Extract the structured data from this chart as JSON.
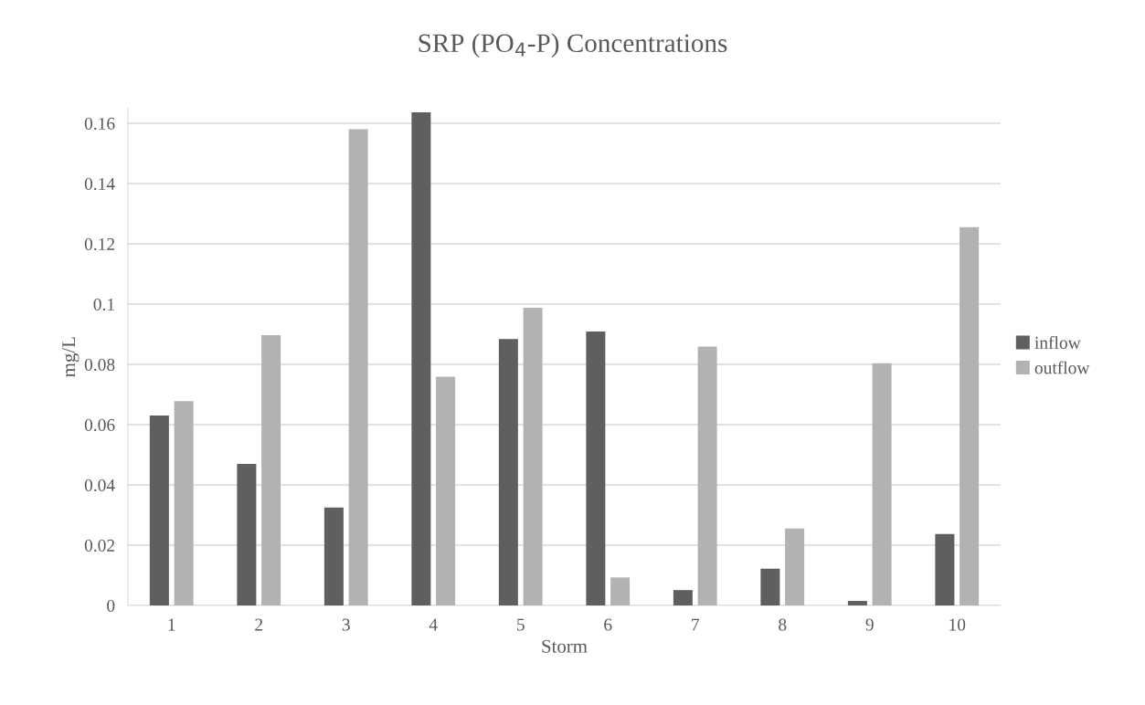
{
  "chart_data": {
    "type": "bar",
    "title": "SRP (PO$_{4}$-P) Concentrations",
    "xlabel": "Storm",
    "ylabel": "mg/L",
    "categories": [
      "1",
      "2",
      "3",
      "4",
      "5",
      "6",
      "7",
      "8",
      "9",
      "10"
    ],
    "series": [
      {
        "name": "inflow",
        "color": "#5f5f5f",
        "values": [
          0.063,
          0.047,
          0.0325,
          0.1636,
          0.0884,
          0.0909,
          0.0051,
          0.0122,
          0.0015,
          0.0237
        ]
      },
      {
        "name": "outflow",
        "color": "#b2b2b2",
        "values": [
          0.0678,
          0.0897,
          0.158,
          0.0759,
          0.0988,
          0.0093,
          0.0859,
          0.0255,
          0.0804,
          0.1255
        ]
      }
    ],
    "ylim": [
      0,
      0.165
    ],
    "yticks": [
      0,
      0.02,
      0.04,
      0.06,
      0.08,
      0.1,
      0.12,
      0.14,
      0.16
    ],
    "grid": "y",
    "legend": "right"
  }
}
